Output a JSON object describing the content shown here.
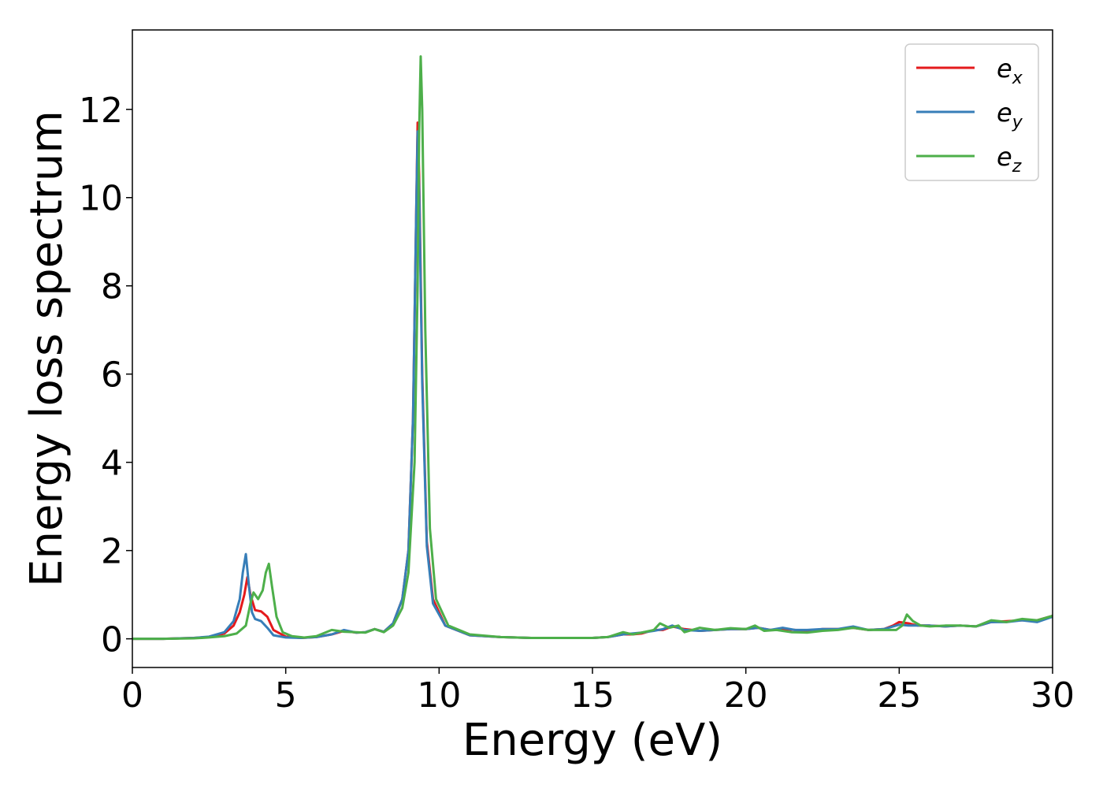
{
  "chart_data": {
    "type": "line",
    "title": "",
    "xlabel": "Energy (eV)",
    "ylabel": "Energy loss spectrum",
    "xlim": [
      0,
      30
    ],
    "ylim": [
      -0.65,
      13.8
    ],
    "xticks": [
      0,
      5,
      10,
      15,
      20,
      25,
      30
    ],
    "xtick_labels": [
      "0",
      "5",
      "10",
      "15",
      "20",
      "25",
      "30"
    ],
    "yticks": [
      0,
      2,
      4,
      6,
      8,
      10,
      12
    ],
    "ytick_labels": [
      "0",
      "2",
      "4",
      "6",
      "8",
      "10",
      "12"
    ],
    "grid": false,
    "legend_position": "top-right",
    "legend": [
      {
        "base": "e",
        "sub": "x"
      },
      {
        "base": "e",
        "sub": "y"
      },
      {
        "base": "e",
        "sub": "z"
      }
    ],
    "series": [
      {
        "name": "e_x",
        "color": "#e41a1c",
        "x": [
          0,
          1,
          2,
          2.5,
          3,
          3.3,
          3.5,
          3.65,
          3.75,
          3.85,
          4.0,
          4.2,
          4.4,
          4.6,
          5.0,
          5.5,
          6.0,
          6.5,
          6.9,
          7.3,
          7.6,
          7.9,
          8.2,
          8.5,
          8.8,
          9.0,
          9.15,
          9.25,
          9.3,
          9.35,
          9.45,
          9.6,
          9.8,
          10.2,
          11,
          12,
          13,
          14,
          15,
          15.5,
          16,
          16.3,
          16.6,
          17,
          17.3,
          17.6,
          18,
          18.5,
          19,
          19.5,
          20,
          20.4,
          20.8,
          21.2,
          21.6,
          22,
          22.5,
          23,
          23.5,
          24,
          24.5,
          24.8,
          25.0,
          25.3,
          25.6,
          26,
          26.5,
          27,
          27.5,
          28,
          28.5,
          29,
          29.5,
          30
        ],
        "y": [
          0.0,
          0.0,
          0.02,
          0.04,
          0.12,
          0.3,
          0.6,
          1.0,
          1.4,
          1.0,
          0.65,
          0.62,
          0.5,
          0.2,
          0.05,
          0.02,
          0.04,
          0.1,
          0.18,
          0.14,
          0.15,
          0.22,
          0.16,
          0.35,
          0.9,
          2.0,
          5.0,
          9.5,
          11.7,
          10.5,
          6.0,
          2.2,
          0.9,
          0.3,
          0.08,
          0.04,
          0.02,
          0.02,
          0.02,
          0.04,
          0.1,
          0.1,
          0.12,
          0.2,
          0.2,
          0.28,
          0.22,
          0.18,
          0.2,
          0.22,
          0.22,
          0.25,
          0.2,
          0.22,
          0.2,
          0.18,
          0.22,
          0.22,
          0.25,
          0.2,
          0.22,
          0.3,
          0.38,
          0.35,
          0.3,
          0.3,
          0.28,
          0.3,
          0.28,
          0.38,
          0.4,
          0.42,
          0.42,
          0.52
        ]
      },
      {
        "name": "e_y",
        "color": "#377eb8",
        "x": [
          0,
          1,
          2,
          2.5,
          3,
          3.3,
          3.5,
          3.6,
          3.7,
          3.8,
          3.9,
          4.0,
          4.2,
          4.4,
          4.6,
          5.0,
          5.5,
          6.0,
          6.5,
          6.9,
          7.3,
          7.6,
          7.9,
          8.2,
          8.5,
          8.8,
          9.0,
          9.15,
          9.25,
          9.3,
          9.35,
          9.45,
          9.6,
          9.8,
          10.2,
          11,
          12,
          13,
          14,
          15,
          15.5,
          16,
          16.3,
          16.6,
          17,
          17.3,
          17.6,
          18,
          18.5,
          19,
          19.5,
          20,
          20.4,
          20.8,
          21.2,
          21.6,
          22,
          22.5,
          23,
          23.5,
          24,
          24.5,
          24.8,
          25.0,
          25.3,
          25.6,
          26,
          26.5,
          27,
          27.5,
          28,
          28.5,
          29,
          29.5,
          30
        ],
        "y": [
          0.0,
          0.0,
          0.02,
          0.05,
          0.15,
          0.4,
          0.9,
          1.5,
          1.92,
          1.2,
          0.6,
          0.45,
          0.4,
          0.25,
          0.08,
          0.03,
          0.02,
          0.04,
          0.1,
          0.2,
          0.14,
          0.15,
          0.22,
          0.16,
          0.35,
          0.9,
          2.0,
          5.0,
          9.5,
          11.5,
          10.2,
          5.8,
          2.1,
          0.8,
          0.3,
          0.08,
          0.04,
          0.02,
          0.02,
          0.02,
          0.04,
          0.1,
          0.12,
          0.14,
          0.18,
          0.22,
          0.3,
          0.2,
          0.18,
          0.2,
          0.22,
          0.22,
          0.25,
          0.2,
          0.25,
          0.2,
          0.2,
          0.22,
          0.22,
          0.28,
          0.2,
          0.22,
          0.28,
          0.32,
          0.3,
          0.3,
          0.3,
          0.28,
          0.3,
          0.28,
          0.38,
          0.38,
          0.42,
          0.38,
          0.5
        ]
      },
      {
        "name": "e_z",
        "color": "#4daf4a",
        "x": [
          0,
          1,
          2,
          2.5,
          3,
          3.4,
          3.7,
          3.85,
          3.95,
          4.1,
          4.25,
          4.35,
          4.45,
          4.55,
          4.7,
          4.9,
          5.2,
          5.6,
          6.0,
          6.5,
          6.9,
          7.3,
          7.6,
          7.9,
          8.2,
          8.5,
          8.8,
          9.0,
          9.2,
          9.3,
          9.35,
          9.4,
          9.45,
          9.55,
          9.7,
          9.9,
          10.3,
          11,
          12,
          13,
          14,
          15,
          15.5,
          16,
          16.3,
          16.6,
          17,
          17.2,
          17.5,
          17.8,
          18,
          18.5,
          19,
          19.5,
          20,
          20.3,
          20.6,
          21,
          21.5,
          22,
          22.5,
          23,
          23.5,
          24,
          24.5,
          24.9,
          25.1,
          25.25,
          25.45,
          25.7,
          26,
          26.5,
          27,
          27.5,
          28,
          28.5,
          29,
          29.5,
          30
        ],
        "y": [
          0.0,
          0.0,
          0.01,
          0.03,
          0.06,
          0.12,
          0.3,
          0.8,
          1.05,
          0.9,
          1.1,
          1.5,
          1.7,
          1.2,
          0.5,
          0.15,
          0.06,
          0.03,
          0.06,
          0.2,
          0.16,
          0.15,
          0.14,
          0.22,
          0.15,
          0.3,
          0.7,
          1.5,
          4.0,
          8.0,
          11.5,
          13.2,
          12.0,
          7.0,
          2.5,
          0.9,
          0.3,
          0.1,
          0.04,
          0.02,
          0.02,
          0.02,
          0.04,
          0.15,
          0.1,
          0.14,
          0.2,
          0.35,
          0.25,
          0.3,
          0.15,
          0.25,
          0.2,
          0.24,
          0.22,
          0.3,
          0.18,
          0.2,
          0.15,
          0.14,
          0.18,
          0.2,
          0.25,
          0.2,
          0.2,
          0.2,
          0.3,
          0.55,
          0.4,
          0.3,
          0.28,
          0.3,
          0.3,
          0.28,
          0.42,
          0.38,
          0.45,
          0.42,
          0.52
        ]
      }
    ]
  }
}
